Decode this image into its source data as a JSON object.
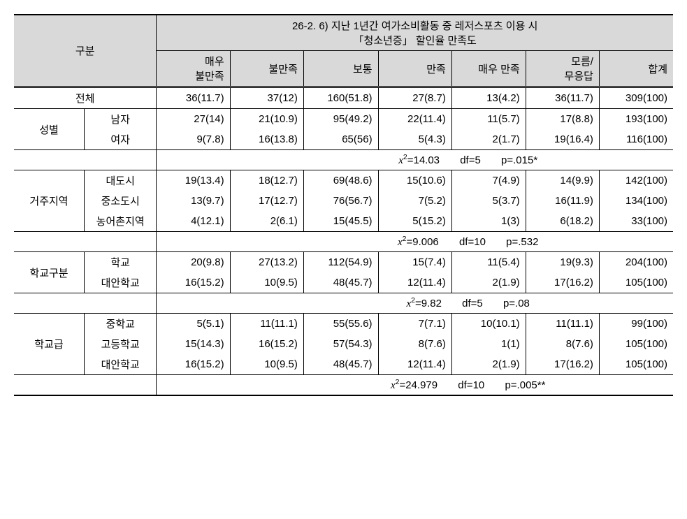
{
  "header": {
    "category_label": "구분",
    "main_title_line1": "26-2. 6) 지난 1년간 여가소비활동 중 레저스포츠 이용 시",
    "main_title_line2": "「청소년증」 할인율 만족도",
    "columns": [
      "매우\n불만족",
      "불만족",
      "보통",
      "만족",
      "매우 만족",
      "모름/\n무응답",
      "합계"
    ]
  },
  "total": {
    "label": "전체",
    "values": [
      "36(11.7)",
      "37(12)",
      "160(51.8)",
      "27(8.7)",
      "13(4.2)",
      "36(11.7)",
      "309(100)"
    ]
  },
  "gender": {
    "label": "성별",
    "rows": [
      {
        "sub": "남자",
        "values": [
          "27(14)",
          "21(10.9)",
          "95(49.2)",
          "22(11.4)",
          "11(5.7)",
          "17(8.8)",
          "193(100)"
        ]
      },
      {
        "sub": "여자",
        "values": [
          "9(7.8)",
          "16(13.8)",
          "65(56)",
          "5(4.3)",
          "2(1.7)",
          "19(16.4)",
          "116(100)"
        ]
      }
    ],
    "stat_chi": "14.03",
    "stat_df": "df=5",
    "stat_p": "p=.015*"
  },
  "region": {
    "label": "거주지역",
    "rows": [
      {
        "sub": "대도시",
        "values": [
          "19(13.4)",
          "18(12.7)",
          "69(48.6)",
          "15(10.6)",
          "7(4.9)",
          "14(9.9)",
          "142(100)"
        ]
      },
      {
        "sub": "중소도시",
        "values": [
          "13(9.7)",
          "17(12.7)",
          "76(56.7)",
          "7(5.2)",
          "5(3.7)",
          "16(11.9)",
          "134(100)"
        ]
      },
      {
        "sub": "농어촌지역",
        "values": [
          "4(12.1)",
          "2(6.1)",
          "15(45.5)",
          "5(15.2)",
          "1(3)",
          "6(18.2)",
          "33(100)"
        ]
      }
    ],
    "stat_chi": "9.006",
    "stat_df": "df=10",
    "stat_p": "p=.532"
  },
  "schooltype": {
    "label": "학교구분",
    "rows": [
      {
        "sub": "학교",
        "values": [
          "20(9.8)",
          "27(13.2)",
          "112(54.9)",
          "15(7.4)",
          "11(5.4)",
          "19(9.3)",
          "204(100)"
        ]
      },
      {
        "sub": "대안학교",
        "values": [
          "16(15.2)",
          "10(9.5)",
          "48(45.7)",
          "12(11.4)",
          "2(1.9)",
          "17(16.2)",
          "105(100)"
        ]
      }
    ],
    "stat_chi": "9.82",
    "stat_df": "df=5",
    "stat_p": "p=.08"
  },
  "schoollevel": {
    "label": "학교급",
    "rows": [
      {
        "sub": "중학교",
        "values": [
          "5(5.1)",
          "11(11.1)",
          "55(55.6)",
          "7(7.1)",
          "10(10.1)",
          "11(11.1)",
          "99(100)"
        ]
      },
      {
        "sub": "고등학교",
        "values": [
          "15(14.3)",
          "16(15.2)",
          "57(54.3)",
          "8(7.6)",
          "1(1)",
          "8(7.6)",
          "105(100)"
        ]
      },
      {
        "sub": "대안학교",
        "values": [
          "16(15.2)",
          "10(9.5)",
          "48(45.7)",
          "12(11.4)",
          "2(1.9)",
          "17(16.2)",
          "105(100)"
        ]
      }
    ],
    "stat_chi": "24.979",
    "stat_df": "df=10",
    "stat_p": "p=.005**"
  }
}
